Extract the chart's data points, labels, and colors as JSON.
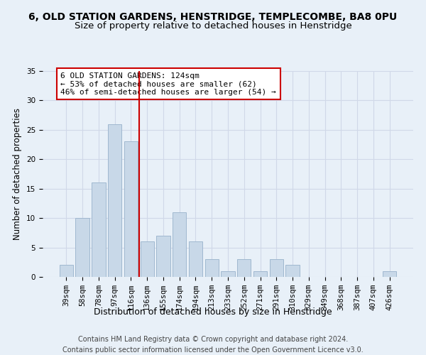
{
  "title": "6, OLD STATION GARDENS, HENSTRIDGE, TEMPLECOMBE, BA8 0PU",
  "subtitle": "Size of property relative to detached houses in Henstridge",
  "xlabel": "Distribution of detached houses by size in Henstridge",
  "ylabel": "Number of detached properties",
  "categories": [
    "39sqm",
    "58sqm",
    "78sqm",
    "97sqm",
    "116sqm",
    "136sqm",
    "155sqm",
    "174sqm",
    "194sqm",
    "213sqm",
    "233sqm",
    "252sqm",
    "271sqm",
    "291sqm",
    "310sqm",
    "329sqm",
    "349sqm",
    "368sqm",
    "387sqm",
    "407sqm",
    "426sqm"
  ],
  "values": [
    2,
    10,
    16,
    26,
    23,
    6,
    7,
    11,
    6,
    3,
    1,
    3,
    1,
    3,
    2,
    0,
    0,
    0,
    0,
    0,
    1
  ],
  "bar_color": "#c8d8e8",
  "bar_edge_color": "#a0b8d0",
  "grid_color": "#d0d8e8",
  "background_color": "#e8f0f8",
  "vline_x": 4.5,
  "vline_color": "#cc0000",
  "annotation_lines": [
    "6 OLD STATION GARDENS: 124sqm",
    "← 53% of detached houses are smaller (62)",
    "46% of semi-detached houses are larger (54) →"
  ],
  "annotation_box_color": "#ffffff",
  "annotation_box_edge": "#cc0000",
  "ylim": [
    0,
    35
  ],
  "yticks": [
    0,
    5,
    10,
    15,
    20,
    25,
    30,
    35
  ],
  "footer": "Contains HM Land Registry data © Crown copyright and database right 2024.\nContains public sector information licensed under the Open Government Licence v3.0.",
  "title_fontsize": 10,
  "subtitle_fontsize": 9.5,
  "xlabel_fontsize": 9,
  "ylabel_fontsize": 8.5,
  "tick_fontsize": 7.5,
  "annotation_fontsize": 8,
  "footer_fontsize": 7
}
